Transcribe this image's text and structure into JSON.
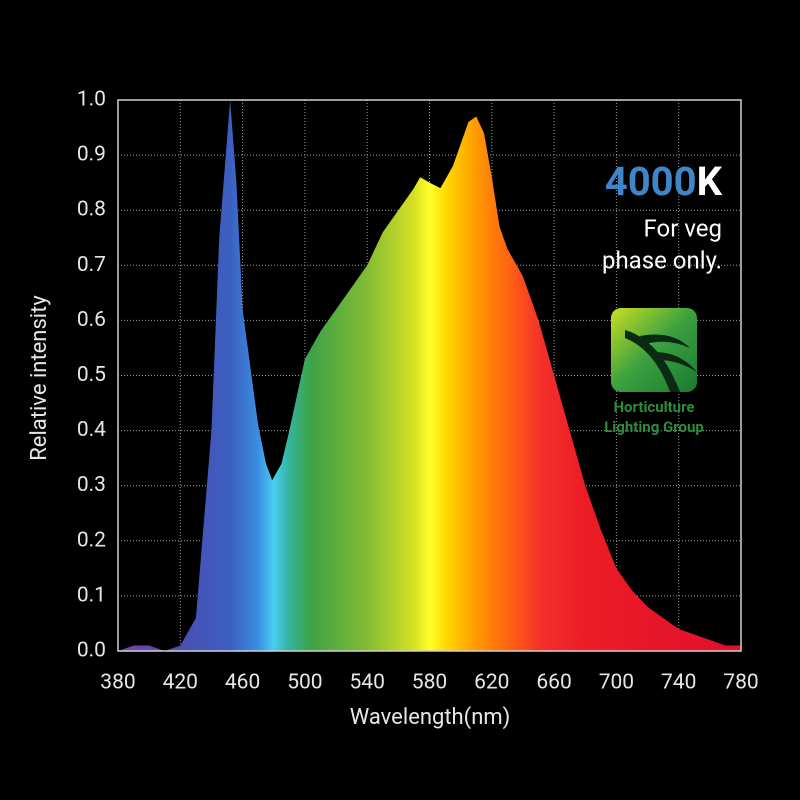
{
  "chart_data": {
    "type": "area",
    "xlabel": "Wavelength(nm)",
    "ylabel": "Relative intensity",
    "annotation_number": "4000",
    "annotation_unit": "K",
    "note_line1": "For veg",
    "note_line2": "phase only.",
    "logo_line1": "Horticulture",
    "logo_line2": "Lighting Group",
    "x": [
      380,
      390,
      400,
      410,
      420,
      430,
      440,
      445,
      452,
      456,
      460,
      470,
      475,
      479,
      485,
      490,
      500,
      510,
      520,
      530,
      540,
      550,
      560,
      570,
      574,
      580,
      587,
      595,
      600,
      605,
      610,
      615,
      620,
      625,
      630,
      640,
      650,
      660,
      670,
      680,
      690,
      700,
      710,
      720,
      730,
      740,
      750,
      760,
      770,
      780
    ],
    "values": [
      0.0,
      0.01,
      0.01,
      0.0,
      0.01,
      0.06,
      0.4,
      0.75,
      1.0,
      0.85,
      0.62,
      0.41,
      0.34,
      0.31,
      0.34,
      0.4,
      0.53,
      0.58,
      0.62,
      0.66,
      0.7,
      0.76,
      0.8,
      0.84,
      0.86,
      0.85,
      0.84,
      0.88,
      0.92,
      0.96,
      0.97,
      0.94,
      0.86,
      0.77,
      0.73,
      0.68,
      0.6,
      0.5,
      0.4,
      0.3,
      0.22,
      0.15,
      0.11,
      0.08,
      0.06,
      0.04,
      0.03,
      0.02,
      0.01,
      0.01
    ],
    "xlim": [
      380,
      780
    ],
    "ylim": [
      0,
      1
    ],
    "xticks": [
      380,
      420,
      460,
      500,
      540,
      580,
      620,
      660,
      700,
      740,
      780
    ],
    "yticks": [
      {
        "value": 0,
        "label": "0.0"
      },
      0.1,
      0.2,
      0.3,
      0.4,
      0.5,
      0.6,
      0.7,
      0.8,
      0.9,
      {
        "value": 1,
        "label": "1.0"
      }
    ],
    "grid": true
  }
}
